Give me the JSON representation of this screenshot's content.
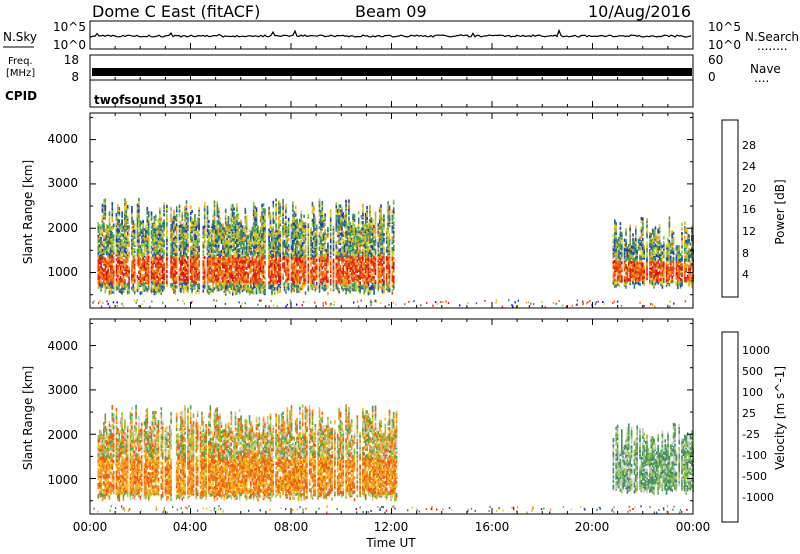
{
  "header": {
    "station": "Dome C East (fitACF)",
    "beam": "Beam 09",
    "date": "10/Aug/2016"
  },
  "noise_panel": {
    "left_label": "N.Sky",
    "right_label": "N.Search",
    "right_legend": "........",
    "left_ticks": [
      "10^5",
      "10^0"
    ],
    "right_ticks": [
      "10^5",
      "10^0"
    ]
  },
  "freq_panel": {
    "left_label_1": "Freq.",
    "left_label_2": "[MHz]",
    "right_label": "Nave",
    "right_legend": "....",
    "left_ticks": [
      "18",
      "8"
    ],
    "right_ticks": [
      "60",
      "0"
    ]
  },
  "cpid": {
    "label": "CPID",
    "value": "twofsound 3501"
  },
  "chart_data": [
    {
      "type": "heatmap",
      "title": "",
      "xlabel": "",
      "ylabel": "Slant Range [km]",
      "ylim": [
        200,
        4600
      ],
      "y_ticks": [
        "1000",
        "2000",
        "3000",
        "4000"
      ],
      "x_ticks": [
        "00:00",
        "04:00",
        "08:00",
        "12:00",
        "16:00",
        "20:00",
        "00:00"
      ],
      "colorbar_label": "Power [dB]",
      "colorbar_ticks": [
        "28",
        "24",
        "20",
        "16",
        "12",
        "8",
        "4"
      ],
      "colorbar_colors": [
        "#0000ff",
        "#1f3fb0",
        "#2f7a8a",
        "#3f9a55",
        "#8fc63a",
        "#e0d020",
        "#f2a020",
        "#ef6a10",
        "#e63a10",
        "#dd1010"
      ],
      "echo_regions": [
        {
          "t_start": 0.3,
          "t_end": 12.2,
          "range_min": 550,
          "range_max": 2700,
          "core_min": 800,
          "core_max": 1400
        },
        {
          "t_start": 20.8,
          "t_end": 24.0,
          "range_min": 700,
          "range_max": 2300,
          "core_min": 850,
          "core_max": 1300
        }
      ]
    },
    {
      "type": "heatmap",
      "title": "",
      "xlabel": "Time UT",
      "ylabel": "Slant Range [km]",
      "ylim": [
        200,
        4600
      ],
      "y_ticks": [
        "1000",
        "2000",
        "3000",
        "4000"
      ],
      "x_ticks": [
        "00:00",
        "04:00",
        "08:00",
        "12:00",
        "16:00",
        "20:00",
        "00:00"
      ],
      "colorbar_label": "Velocity [m s^-1]",
      "colorbar_ticks": [
        "1000",
        "500",
        "100",
        "25",
        "-25",
        "-100",
        "-500",
        "-1000"
      ],
      "colorbar_colors": [
        "#1f3fb0",
        "#2f6fa0",
        "#3f8a70",
        "#4fa050",
        "#8fc63a",
        "#c8c8c8",
        "#f2c020",
        "#f29020",
        "#ef5a10",
        "#dd1010"
      ],
      "echo_regions": [
        {
          "t_start": 0.3,
          "t_end": 12.2,
          "range_min": 550,
          "range_max": 2700,
          "core_min": 700,
          "core_max": 1500
        },
        {
          "t_start": 20.8,
          "t_end": 24.0,
          "range_min": 700,
          "range_max": 2300,
          "core_min": 800,
          "core_max": 1400
        }
      ]
    }
  ]
}
